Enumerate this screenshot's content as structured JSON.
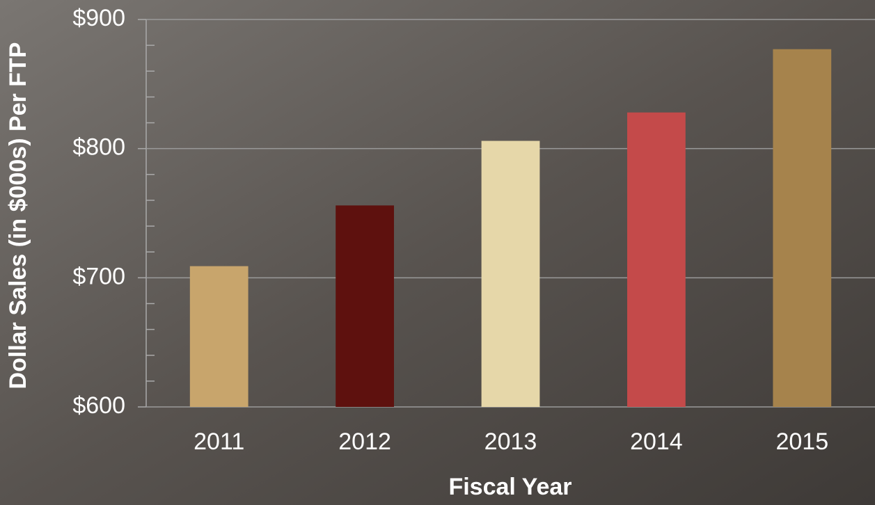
{
  "chart_data": {
    "type": "bar",
    "x_label": "Fiscal Year",
    "y_label": "Dollar Sales (in $000s) Per FTP",
    "categories": [
      "2011",
      "2012",
      "2013",
      "2014",
      "2015"
    ],
    "values": [
      709,
      756,
      806,
      828,
      877
    ],
    "colors": [
      "#c8a56c",
      "#5e110e",
      "#e6d7a9",
      "#c44a4a",
      "#a6834c"
    ],
    "ylim": [
      600,
      900
    ],
    "yticks": [
      {
        "value": 600,
        "label": "$600"
      },
      {
        "value": 700,
        "label": "$700"
      },
      {
        "value": 800,
        "label": "$800"
      },
      {
        "value": 900,
        "label": "$900"
      }
    ],
    "minor_yticks": [
      620,
      640,
      660,
      680,
      720,
      740,
      760,
      780,
      820,
      840,
      860,
      880
    ],
    "grid": true
  }
}
